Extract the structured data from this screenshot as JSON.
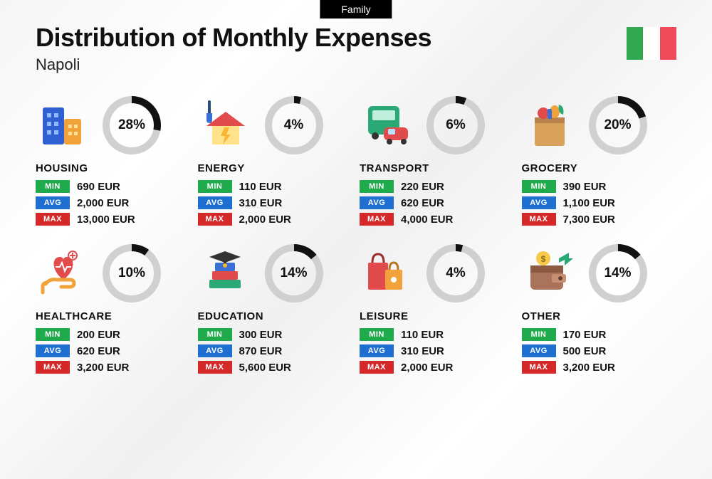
{
  "tag": "Family",
  "title": "Distribution of Monthly Expenses",
  "subtitle": "Napoli",
  "flag_colors": [
    "#2fa84f",
    "#ffffff",
    "#ef4b5b"
  ],
  "currency": "EUR",
  "donut": {
    "size": 82,
    "stroke_width": 10,
    "track_color": "#d0d0d0",
    "progress_color": "#111111"
  },
  "stat_labels": {
    "min": "MIN",
    "avg": "AVG",
    "max": "MAX"
  },
  "stat_colors": {
    "min": "#1fab4c",
    "avg": "#1f6fd1",
    "max": "#d62828"
  },
  "categories": [
    {
      "key": "housing",
      "name": "HOUSING",
      "pct": 28,
      "min": "690",
      "avg": "2,000",
      "max": "13,000",
      "icon": "buildings"
    },
    {
      "key": "energy",
      "name": "ENERGY",
      "pct": 4,
      "min": "110",
      "avg": "310",
      "max": "2,000",
      "icon": "energy-house"
    },
    {
      "key": "transport",
      "name": "TRANSPORT",
      "pct": 6,
      "min": "220",
      "avg": "620",
      "max": "4,000",
      "icon": "bus-car"
    },
    {
      "key": "grocery",
      "name": "GROCERY",
      "pct": 20,
      "min": "390",
      "avg": "1,100",
      "max": "7,300",
      "icon": "grocery-bag"
    },
    {
      "key": "healthcare",
      "name": "HEALTHCARE",
      "pct": 10,
      "min": "200",
      "avg": "620",
      "max": "3,200",
      "icon": "heart-hand"
    },
    {
      "key": "education",
      "name": "EDUCATION",
      "pct": 14,
      "min": "300",
      "avg": "870",
      "max": "5,600",
      "icon": "books-cap"
    },
    {
      "key": "leisure",
      "name": "LEISURE",
      "pct": 4,
      "min": "110",
      "avg": "310",
      "max": "2,000",
      "icon": "shopping-bags"
    },
    {
      "key": "other",
      "name": "OTHER",
      "pct": 14,
      "min": "170",
      "avg": "500",
      "max": "3,200",
      "icon": "wallet-arrow"
    }
  ]
}
